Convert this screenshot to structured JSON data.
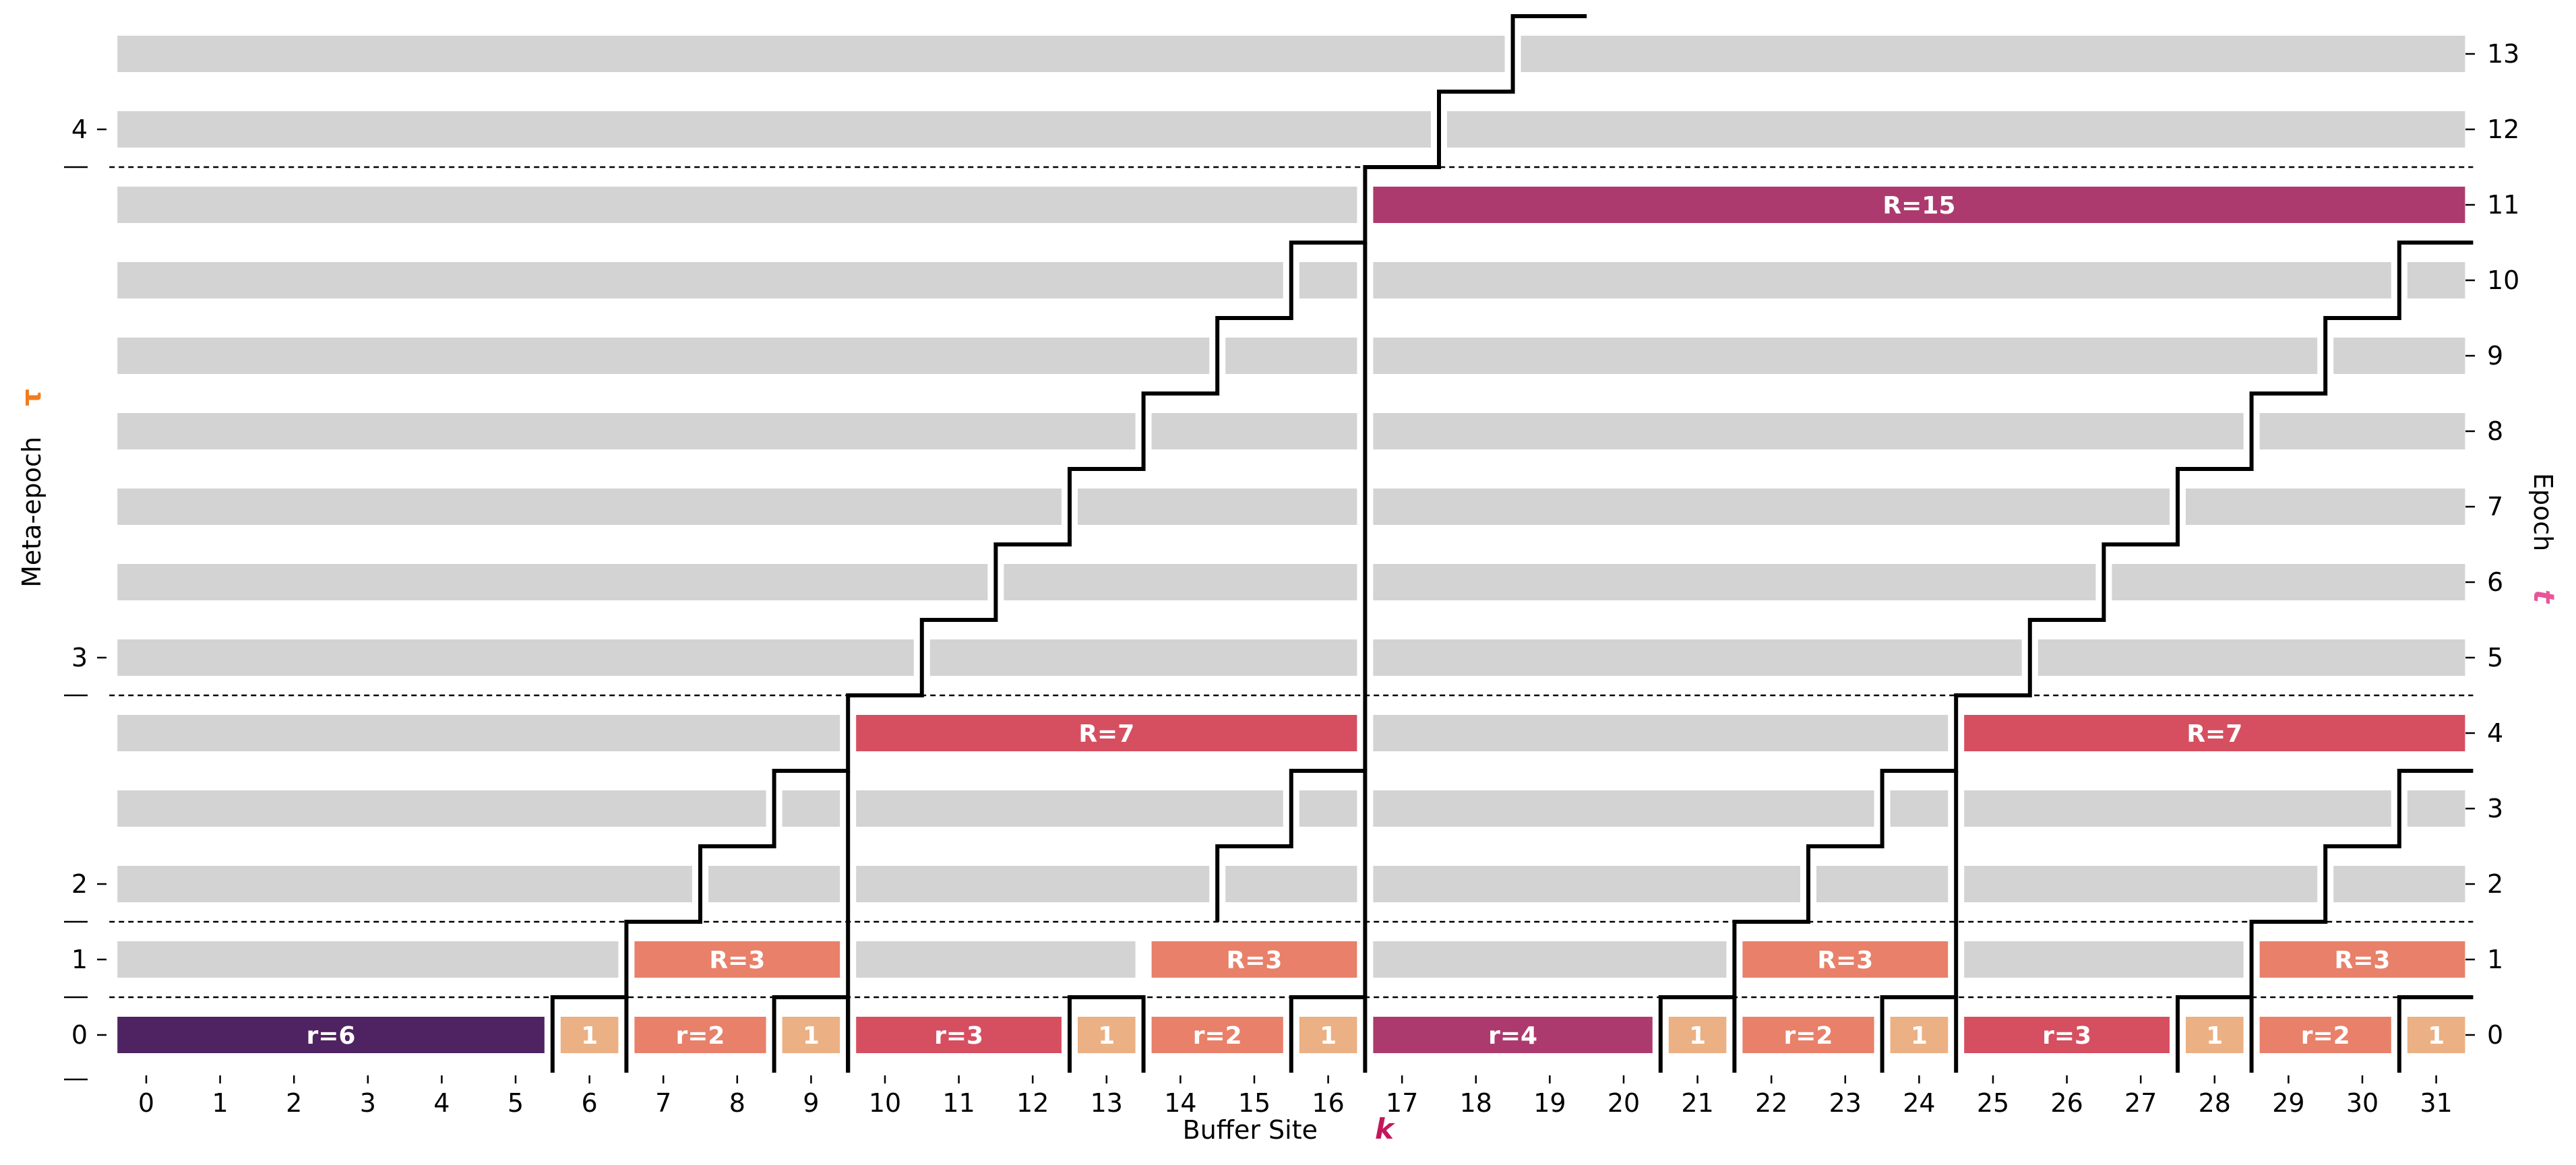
{
  "chart_data": {
    "type": "bar",
    "xlabel": "Buffer Site",
    "xlabel_symbol": "k",
    "ylabel_left": "Meta-epoch",
    "ylabel_left_symbol": "τ",
    "ylabel_right": "Epoch",
    "ylabel_right_symbol": "t",
    "xlim": [
      0,
      31
    ],
    "ylim": [
      0,
      13
    ],
    "x_ticks": [
      0,
      1,
      2,
      3,
      4,
      5,
      6,
      7,
      8,
      9,
      10,
      11,
      12,
      13,
      14,
      15,
      16,
      17,
      18,
      19,
      20,
      21,
      22,
      23,
      24,
      25,
      26,
      27,
      28,
      29,
      30,
      31
    ],
    "epoch_ticks": [
      0,
      1,
      2,
      3,
      4,
      5,
      6,
      7,
      8,
      9,
      10,
      11,
      12,
      13
    ],
    "meta_epoch_ticks": [
      {
        "label": "0",
        "epoch": 0
      },
      {
        "label": "1",
        "epoch": 1
      },
      {
        "label": "2",
        "epoch": 2
      },
      {
        "label": "3",
        "epoch": 5
      },
      {
        "label": "4",
        "epoch": 12
      }
    ],
    "meta_epoch_boundaries": [
      0.5,
      1.5,
      4.5,
      11.5
    ],
    "grid": false,
    "colors": {
      "inactive": "#d3d3d3",
      "r1": "#ebb083",
      "r2": "#e8806a",
      "r3": "#d64f61",
      "r4": "#ad3a6e",
      "r6": "#4f2361",
      "R3": "#e8806a",
      "R7": "#d64f61",
      "R15": "#ad3a6e",
      "text_on_bar": "#ffffff",
      "step_line": "#000000",
      "k_symbol": "#c2185b",
      "tau_symbol": "#f37b1d",
      "t_symbol": "#e8559a"
    },
    "segments": [
      {
        "epoch": 0,
        "x0": 0,
        "x1": 5,
        "label": "r=6",
        "color": "#4f2361"
      },
      {
        "epoch": 0,
        "x0": 6,
        "x1": 6,
        "label": "1",
        "color": "#ebb083"
      },
      {
        "epoch": 0,
        "x0": 7,
        "x1": 8,
        "label": "r=2",
        "color": "#e8806a"
      },
      {
        "epoch": 0,
        "x0": 9,
        "x1": 9,
        "label": "1",
        "color": "#ebb083"
      },
      {
        "epoch": 0,
        "x0": 10,
        "x1": 12,
        "label": "r=3",
        "color": "#d64f61"
      },
      {
        "epoch": 0,
        "x0": 13,
        "x1": 13,
        "label": "1",
        "color": "#ebb083"
      },
      {
        "epoch": 0,
        "x0": 14,
        "x1": 15,
        "label": "r=2",
        "color": "#e8806a"
      },
      {
        "epoch": 0,
        "x0": 16,
        "x1": 16,
        "label": "1",
        "color": "#ebb083"
      },
      {
        "epoch": 0,
        "x0": 17,
        "x1": 20,
        "label": "r=4",
        "color": "#ad3a6e"
      },
      {
        "epoch": 0,
        "x0": 21,
        "x1": 21,
        "label": "1",
        "color": "#ebb083"
      },
      {
        "epoch": 0,
        "x0": 22,
        "x1": 23,
        "label": "r=2",
        "color": "#e8806a"
      },
      {
        "epoch": 0,
        "x0": 24,
        "x1": 24,
        "label": "1",
        "color": "#ebb083"
      },
      {
        "epoch": 0,
        "x0": 25,
        "x1": 27,
        "label": "r=3",
        "color": "#d64f61"
      },
      {
        "epoch": 0,
        "x0": 28,
        "x1": 28,
        "label": "1",
        "color": "#ebb083"
      },
      {
        "epoch": 0,
        "x0": 29,
        "x1": 30,
        "label": "r=2",
        "color": "#e8806a"
      },
      {
        "epoch": 0,
        "x0": 31,
        "x1": 31,
        "label": "1",
        "color": "#ebb083"
      },
      {
        "epoch": 1,
        "x0": 0,
        "x1": 6,
        "label": "",
        "color": "#d3d3d3"
      },
      {
        "epoch": 1,
        "x0": 7,
        "x1": 9,
        "label": "R=3",
        "color": "#e8806a"
      },
      {
        "epoch": 1,
        "x0": 10,
        "x1": 13,
        "label": "",
        "color": "#d3d3d3"
      },
      {
        "epoch": 1,
        "x0": 14,
        "x1": 16,
        "label": "R=3",
        "color": "#e8806a"
      },
      {
        "epoch": 1,
        "x0": 17,
        "x1": 21,
        "label": "",
        "color": "#d3d3d3"
      },
      {
        "epoch": 1,
        "x0": 22,
        "x1": 24,
        "label": "R=3",
        "color": "#e8806a"
      },
      {
        "epoch": 1,
        "x0": 25,
        "x1": 28,
        "label": "",
        "color": "#d3d3d3"
      },
      {
        "epoch": 1,
        "x0": 29,
        "x1": 31,
        "label": "R=3",
        "color": "#e8806a"
      },
      {
        "epoch": 2,
        "x0": 0,
        "x1": 7,
        "label": "",
        "color": "#d3d3d3"
      },
      {
        "epoch": 2,
        "x0": 8,
        "x1": 9,
        "label": "",
        "color": "#d3d3d3"
      },
      {
        "epoch": 2,
        "x0": 10,
        "x1": 14,
        "label": "",
        "color": "#d3d3d3"
      },
      {
        "epoch": 2,
        "x0": 15,
        "x1": 16,
        "label": "",
        "color": "#d3d3d3"
      },
      {
        "epoch": 2,
        "x0": 17,
        "x1": 22,
        "label": "",
        "color": "#d3d3d3"
      },
      {
        "epoch": 2,
        "x0": 23,
        "x1": 24,
        "label": "",
        "color": "#d3d3d3"
      },
      {
        "epoch": 2,
        "x0": 25,
        "x1": 29,
        "label": "",
        "color": "#d3d3d3"
      },
      {
        "epoch": 2,
        "x0": 30,
        "x1": 31,
        "label": "",
        "color": "#d3d3d3"
      },
      {
        "epoch": 3,
        "x0": 0,
        "x1": 8,
        "label": "",
        "color": "#d3d3d3"
      },
      {
        "epoch": 3,
        "x0": 9,
        "x1": 9,
        "label": "",
        "color": "#d3d3d3"
      },
      {
        "epoch": 3,
        "x0": 10,
        "x1": 15,
        "label": "",
        "color": "#d3d3d3"
      },
      {
        "epoch": 3,
        "x0": 16,
        "x1": 16,
        "label": "",
        "color": "#d3d3d3"
      },
      {
        "epoch": 3,
        "x0": 17,
        "x1": 23,
        "label": "",
        "color": "#d3d3d3"
      },
      {
        "epoch": 3,
        "x0": 24,
        "x1": 24,
        "label": "",
        "color": "#d3d3d3"
      },
      {
        "epoch": 3,
        "x0": 25,
        "x1": 30,
        "label": "",
        "color": "#d3d3d3"
      },
      {
        "epoch": 3,
        "x0": 31,
        "x1": 31,
        "label": "",
        "color": "#d3d3d3"
      },
      {
        "epoch": 4,
        "x0": 0,
        "x1": 9,
        "label": "",
        "color": "#d3d3d3"
      },
      {
        "epoch": 4,
        "x0": 10,
        "x1": 16,
        "label": "R=7",
        "color": "#d64f61"
      },
      {
        "epoch": 4,
        "x0": 17,
        "x1": 24,
        "label": "",
        "color": "#d3d3d3"
      },
      {
        "epoch": 4,
        "x0": 25,
        "x1": 31,
        "label": "R=7",
        "color": "#d64f61"
      },
      {
        "epoch": 5,
        "x0": 0,
        "x1": 10,
        "label": "",
        "color": "#d3d3d3"
      },
      {
        "epoch": 5,
        "x0": 11,
        "x1": 16,
        "label": "",
        "color": "#d3d3d3"
      },
      {
        "epoch": 5,
        "x0": 17,
        "x1": 25,
        "label": "",
        "color": "#d3d3d3"
      },
      {
        "epoch": 5,
        "x0": 26,
        "x1": 31,
        "label": "",
        "color": "#d3d3d3"
      },
      {
        "epoch": 6,
        "x0": 0,
        "x1": 11,
        "label": "",
        "color": "#d3d3d3"
      },
      {
        "epoch": 6,
        "x0": 12,
        "x1": 16,
        "label": "",
        "color": "#d3d3d3"
      },
      {
        "epoch": 6,
        "x0": 17,
        "x1": 26,
        "label": "",
        "color": "#d3d3d3"
      },
      {
        "epoch": 6,
        "x0": 27,
        "x1": 31,
        "label": "",
        "color": "#d3d3d3"
      },
      {
        "epoch": 7,
        "x0": 0,
        "x1": 12,
        "label": "",
        "color": "#d3d3d3"
      },
      {
        "epoch": 7,
        "x0": 13,
        "x1": 16,
        "label": "",
        "color": "#d3d3d3"
      },
      {
        "epoch": 7,
        "x0": 17,
        "x1": 27,
        "label": "",
        "color": "#d3d3d3"
      },
      {
        "epoch": 7,
        "x0": 28,
        "x1": 31,
        "label": "",
        "color": "#d3d3d3"
      },
      {
        "epoch": 8,
        "x0": 0,
        "x1": 13,
        "label": "",
        "color": "#d3d3d3"
      },
      {
        "epoch": 8,
        "x0": 14,
        "x1": 16,
        "label": "",
        "color": "#d3d3d3"
      },
      {
        "epoch": 8,
        "x0": 17,
        "x1": 28,
        "label": "",
        "color": "#d3d3d3"
      },
      {
        "epoch": 8,
        "x0": 29,
        "x1": 31,
        "label": "",
        "color": "#d3d3d3"
      },
      {
        "epoch": 9,
        "x0": 0,
        "x1": 14,
        "label": "",
        "color": "#d3d3d3"
      },
      {
        "epoch": 9,
        "x0": 15,
        "x1": 16,
        "label": "",
        "color": "#d3d3d3"
      },
      {
        "epoch": 9,
        "x0": 17,
        "x1": 29,
        "label": "",
        "color": "#d3d3d3"
      },
      {
        "epoch": 9,
        "x0": 30,
        "x1": 31,
        "label": "",
        "color": "#d3d3d3"
      },
      {
        "epoch": 10,
        "x0": 0,
        "x1": 15,
        "label": "",
        "color": "#d3d3d3"
      },
      {
        "epoch": 10,
        "x0": 16,
        "x1": 16,
        "label": "",
        "color": "#d3d3d3"
      },
      {
        "epoch": 10,
        "x0": 17,
        "x1": 30,
        "label": "",
        "color": "#d3d3d3"
      },
      {
        "epoch": 10,
        "x0": 31,
        "x1": 31,
        "label": "",
        "color": "#d3d3d3"
      },
      {
        "epoch": 11,
        "x0": 0,
        "x1": 16,
        "label": "",
        "color": "#d3d3d3"
      },
      {
        "epoch": 11,
        "x0": 17,
        "x1": 31,
        "label": "R=15",
        "color": "#ad3a6e"
      },
      {
        "epoch": 12,
        "x0": 0,
        "x1": 17,
        "label": "",
        "color": "#d3d3d3"
      },
      {
        "epoch": 12,
        "x0": 18,
        "x1": 31,
        "label": "",
        "color": "#d3d3d3"
      },
      {
        "epoch": 13,
        "x0": 0,
        "x1": 18,
        "label": "",
        "color": "#d3d3d3"
      },
      {
        "epoch": 13,
        "x0": 19,
        "x1": 31,
        "label": "",
        "color": "#d3d3d3"
      }
    ],
    "step_lines": [
      [
        [
          5.5,
          -0.5
        ],
        [
          5.5,
          -0.5
        ],
        [
          5.5,
          0.5
        ],
        [
          6.5,
          0.5
        ],
        [
          6.5,
          1.5
        ],
        [
          7.5,
          1.5
        ],
        [
          7.5,
          2.5
        ],
        [
          8.5,
          2.5
        ],
        [
          8.5,
          3.5
        ],
        [
          9.5,
          3.5
        ],
        [
          9.5,
          4.5
        ],
        [
          10.5,
          4.5
        ],
        [
          10.5,
          5.5
        ],
        [
          11.5,
          5.5
        ],
        [
          11.5,
          6.5
        ],
        [
          12.5,
          6.5
        ],
        [
          12.5,
          7.5
        ],
        [
          13.5,
          7.5
        ],
        [
          13.5,
          8.5
        ],
        [
          14.5,
          8.5
        ],
        [
          14.5,
          9.5
        ],
        [
          15.5,
          9.5
        ],
        [
          15.5,
          10.5
        ],
        [
          16.5,
          10.5
        ],
        [
          16.5,
          11.5
        ],
        [
          17.5,
          11.5
        ],
        [
          17.5,
          12.5
        ],
        [
          18.5,
          12.5
        ],
        [
          18.5,
          13.5
        ],
        [
          19.5,
          13.5
        ]
      ],
      [
        [
          6.5,
          -0.5
        ],
        [
          6.5,
          0.5
        ],
        [
          5.5,
          0.5
        ]
      ],
      [
        [
          8.5,
          -0.5
        ],
        [
          8.5,
          0.5
        ],
        [
          9.5,
          0.5
        ],
        [
          9.5,
          -0.5
        ]
      ],
      [
        [
          12.5,
          -0.5
        ],
        [
          12.5,
          0.5
        ],
        [
          13.5,
          0.5
        ],
        [
          13.5,
          -0.5
        ]
      ],
      [
        [
          15.5,
          -0.5
        ],
        [
          15.5,
          0.5
        ],
        [
          16.5,
          0.5
        ],
        [
          16.5,
          -0.5
        ]
      ],
      [
        [
          16.5,
          0.5
        ],
        [
          16.5,
          3.5
        ],
        [
          15.5,
          3.5
        ],
        [
          15.5,
          2.5
        ],
        [
          14.5,
          2.5
        ],
        [
          14.5,
          1.5
        ]
      ],
      [
        [
          16.5,
          3.5
        ],
        [
          16.5,
          10.5
        ]
      ],
      [
        [
          20.5,
          -0.5
        ],
        [
          20.5,
          0.5
        ],
        [
          21.5,
          0.5
        ],
        [
          21.5,
          1.5
        ],
        [
          22.5,
          1.5
        ],
        [
          22.5,
          2.5
        ],
        [
          23.5,
          2.5
        ],
        [
          23.5,
          3.5
        ],
        [
          24.5,
          3.5
        ],
        [
          24.5,
          4.5
        ],
        [
          25.5,
          4.5
        ],
        [
          25.5,
          5.5
        ],
        [
          26.5,
          5.5
        ],
        [
          26.5,
          6.5
        ],
        [
          27.5,
          6.5
        ],
        [
          27.5,
          7.5
        ],
        [
          28.5,
          7.5
        ],
        [
          28.5,
          8.5
        ],
        [
          29.5,
          8.5
        ],
        [
          29.5,
          9.5
        ],
        [
          30.5,
          9.5
        ],
        [
          30.5,
          10.5
        ],
        [
          31.5,
          10.5
        ]
      ],
      [
        [
          21.5,
          -0.5
        ],
        [
          21.5,
          0.5
        ]
      ],
      [
        [
          23.5,
          -0.5
        ],
        [
          23.5,
          0.5
        ],
        [
          24.5,
          0.5
        ],
        [
          24.5,
          -0.5
        ]
      ],
      [
        [
          24.5,
          0.5
        ],
        [
          24.5,
          3.5
        ]
      ],
      [
        [
          27.5,
          -0.5
        ],
        [
          27.5,
          0.5
        ],
        [
          28.5,
          0.5
        ],
        [
          28.5,
          1.5
        ],
        [
          29.5,
          1.5
        ],
        [
          29.5,
          2.5
        ],
        [
          30.5,
          2.5
        ],
        [
          30.5,
          3.5
        ],
        [
          31.5,
          3.5
        ]
      ],
      [
        [
          28.5,
          -0.5
        ],
        [
          28.5,
          0.5
        ]
      ],
      [
        [
          30.5,
          -0.5
        ],
        [
          30.5,
          0.5
        ],
        [
          31.5,
          0.5
        ]
      ],
      [
        [
          9.5,
          -0.5
        ],
        [
          9.5,
          3.5
        ]
      ]
    ]
  }
}
